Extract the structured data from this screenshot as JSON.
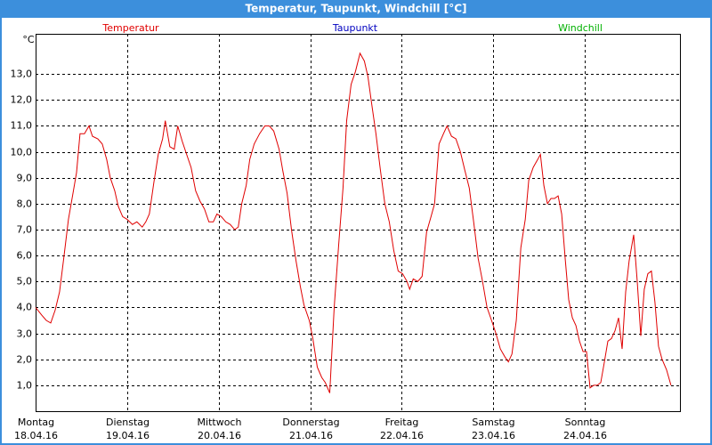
{
  "window_title": "Temperatur, Taupunkt, Windchill [°C]",
  "chart_data": {
    "type": "line",
    "unit": "°C",
    "series": [
      {
        "name": "Temperatur",
        "color": "#e00000",
        "x": [
          0,
          0.068,
          0.117,
          0.165,
          0.214,
          0.262,
          0.311,
          0.359,
          0.408,
          0.447,
          0.485,
          0.534,
          0.583,
          0.621,
          0.68,
          0.728,
          0.777,
          0.816,
          0.864,
          0.903,
          0.951,
          1.0,
          1.058,
          1.107,
          1.165,
          1.204,
          1.243,
          1.291,
          1.34,
          1.388,
          1.417,
          1.466,
          1.515,
          1.553,
          1.602,
          1.65,
          1.699,
          1.748,
          1.796,
          1.845,
          1.893,
          1.942,
          1.981,
          2.029,
          2.078,
          2.126,
          2.175,
          2.214,
          2.252,
          2.301,
          2.34,
          2.388,
          2.447,
          2.505,
          2.553,
          2.602,
          2.66,
          2.699,
          2.748,
          2.796,
          2.845,
          2.893,
          2.932,
          2.99,
          3.029,
          3.078,
          3.126,
          3.165,
          3.214,
          3.262,
          3.311,
          3.359,
          3.398,
          3.447,
          3.495,
          3.544,
          3.592,
          3.631,
          3.67,
          3.718,
          3.767,
          3.816,
          3.864,
          3.913,
          3.961,
          4.01,
          4.058,
          4.087,
          4.126,
          4.175,
          4.223,
          4.272,
          4.32,
          4.359,
          4.408,
          4.456,
          4.495,
          4.544,
          4.592,
          4.641,
          4.689,
          4.738,
          4.786,
          4.835,
          4.883,
          4.932,
          4.981,
          5.029,
          5.078,
          5.126,
          5.165,
          5.204,
          5.252,
          5.301,
          5.35,
          5.388,
          5.437,
          5.485,
          5.515,
          5.553,
          5.592,
          5.631,
          5.67,
          5.709,
          5.748,
          5.786,
          5.825,
          5.864,
          5.903,
          5.942,
          5.981,
          6.019,
          6.058,
          6.097,
          6.136,
          6.175,
          6.214,
          6.252,
          6.291,
          6.33,
          6.369,
          6.408,
          6.447,
          6.485,
          6.534,
          6.573,
          6.612,
          6.65,
          6.689,
          6.728,
          6.767,
          6.806,
          6.845,
          6.893,
          6.942
        ],
        "values": [
          4.0,
          3.7,
          3.5,
          3.4,
          3.9,
          4.6,
          6.0,
          7.4,
          8.4,
          9.2,
          10.7,
          10.7,
          11.0,
          10.6,
          10.5,
          10.3,
          9.7,
          9.0,
          8.5,
          7.9,
          7.5,
          7.4,
          7.2,
          7.3,
          7.1,
          7.3,
          7.6,
          8.8,
          9.9,
          10.5,
          11.2,
          10.2,
          10.1,
          11.0,
          10.4,
          9.9,
          9.4,
          8.5,
          8.1,
          7.8,
          7.3,
          7.3,
          7.6,
          7.5,
          7.3,
          7.2,
          7.0,
          7.1,
          8.0,
          8.7,
          9.7,
          10.3,
          10.7,
          11.0,
          11.0,
          10.8,
          10.1,
          9.3,
          8.4,
          7.0,
          5.8,
          4.8,
          4.1,
          3.5,
          2.8,
          1.7,
          1.3,
          1.1,
          0.7,
          4.0,
          6.4,
          8.6,
          11.2,
          12.6,
          13.1,
          13.8,
          13.5,
          12.9,
          11.9,
          10.7,
          9.3,
          8.0,
          7.3,
          6.2,
          5.4,
          5.3,
          5.0,
          4.7,
          5.1,
          5.0,
          5.2,
          6.9,
          7.5,
          8.0,
          10.3,
          10.7,
          11.0,
          10.6,
          10.5,
          10.0,
          9.3,
          8.6,
          7.3,
          5.9,
          5.0,
          4.0,
          3.5,
          3.0,
          2.4,
          2.1,
          1.9,
          2.2,
          3.5,
          6.3,
          7.4,
          8.9,
          9.4,
          9.7,
          9.9,
          8.7,
          8.0,
          8.2,
          8.2,
          8.3,
          7.6,
          5.9,
          4.3,
          3.6,
          3.3,
          2.7,
          2.3,
          2.3,
          0.9,
          1.0,
          1.0,
          1.1,
          1.9,
          2.7,
          2.8,
          3.1,
          3.6,
          2.4,
          4.6,
          5.8,
          6.8,
          5.0,
          2.9,
          4.7,
          5.3,
          5.4,
          4.2,
          2.5,
          2.0,
          1.6,
          1.0
        ]
      },
      {
        "name": "Taupunkt",
        "color": "#0000c0",
        "x": [],
        "values": []
      },
      {
        "name": "Windchill",
        "color": "#00b000",
        "x": [],
        "values": []
      }
    ],
    "xlim": [
      0,
      7.04
    ],
    "ylim": [
      0,
      14.55
    ],
    "xticks": [
      {
        "value": 0,
        "label": [
          "Montag",
          "18.04.16"
        ]
      },
      {
        "value": 1,
        "label": [
          "Dienstag",
          "19.04.16"
        ]
      },
      {
        "value": 2,
        "label": [
          "Mittwoch",
          "20.04.16"
        ]
      },
      {
        "value": 3,
        "label": [
          "Donnerstag",
          "21.04.16"
        ]
      },
      {
        "value": 4,
        "label": [
          "Freitag",
          "22.04.16"
        ]
      },
      {
        "value": 5,
        "label": [
          "Samstag",
          "23.04.16"
        ]
      },
      {
        "value": 6,
        "label": [
          "Sonntag",
          "24.04.16"
        ]
      }
    ],
    "yticks": [
      {
        "value": 1,
        "label": "1,0"
      },
      {
        "value": 2,
        "label": "2,0"
      },
      {
        "value": 3,
        "label": "3,0"
      },
      {
        "value": 4,
        "label": "4,0"
      },
      {
        "value": 5,
        "label": "5,0"
      },
      {
        "value": 6,
        "label": "6,0"
      },
      {
        "value": 7,
        "label": "7,0"
      },
      {
        "value": 8,
        "label": "8,0"
      },
      {
        "value": 9,
        "label": "9,0"
      },
      {
        "value": 10,
        "label": "10,0"
      },
      {
        "value": 11,
        "label": "11,0"
      },
      {
        "value": 12,
        "label": "12,0"
      },
      {
        "value": 13,
        "label": "13,0"
      }
    ],
    "grid": true
  }
}
